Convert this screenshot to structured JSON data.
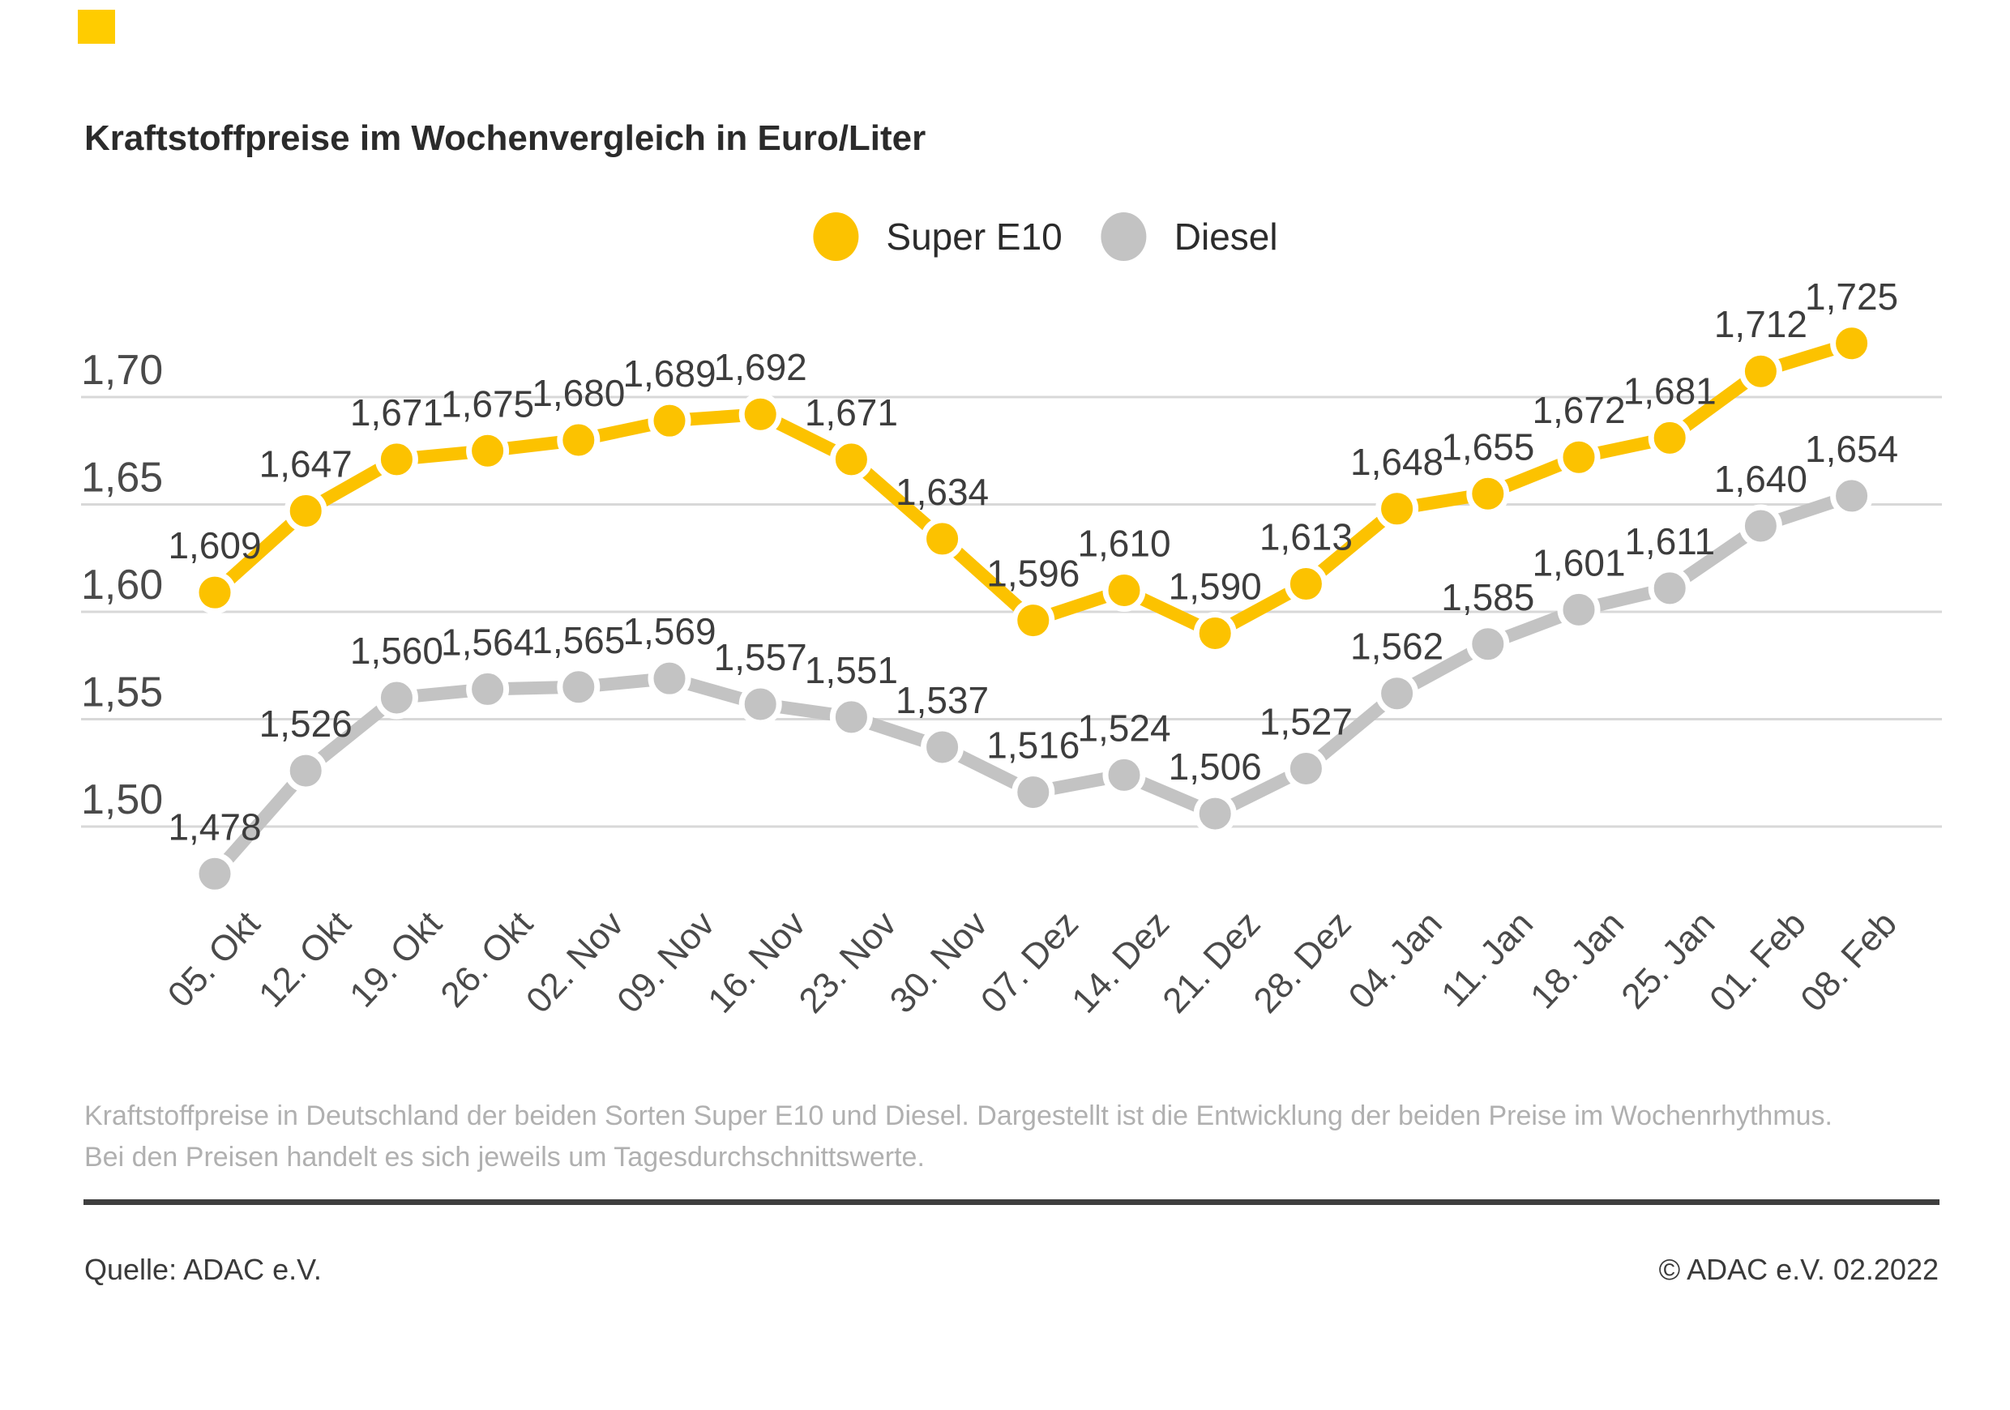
{
  "brand": {
    "mark_color": "#FFCC00"
  },
  "legend": [
    {
      "label": "Super E10",
      "color": "#FCC200"
    },
    {
      "label": "Diesel",
      "color": "#C3C3C3"
    }
  ],
  "chart_data": {
    "type": "line",
    "title": "Kraftstoffpreise im Wochenvergleich in Euro/Liter",
    "categories": [
      "05. Okt",
      "12. Okt",
      "19. Okt",
      "26. Okt",
      "02. Nov",
      "09. Nov",
      "16. Nov",
      "23. Nov",
      "30. Nov",
      "07. Dez",
      "14. Dez",
      "21. Dez",
      "28. Dez",
      "04. Jan",
      "11. Jan",
      "18. Jan",
      "25. Jan",
      "01. Feb",
      "08. Feb"
    ],
    "series": [
      {
        "name": "Super E10",
        "color": "#FCC200",
        "values": [
          1.609,
          1.647,
          1.671,
          1.675,
          1.68,
          1.689,
          1.692,
          1.671,
          1.634,
          1.596,
          1.61,
          1.59,
          1.613,
          1.648,
          1.655,
          1.672,
          1.681,
          1.712,
          1.725
        ]
      },
      {
        "name": "Diesel",
        "color": "#C3C3C3",
        "values": [
          1.478,
          1.526,
          1.56,
          1.564,
          1.565,
          1.569,
          1.557,
          1.551,
          1.537,
          1.516,
          1.524,
          1.506,
          1.527,
          1.562,
          1.585,
          1.601,
          1.611,
          1.64,
          1.654
        ]
      }
    ],
    "unit": "Euro/Liter",
    "yticks": [
      1.7,
      1.65,
      1.6,
      1.55,
      1.5
    ],
    "ylim": [
      1.45,
      1.75
    ],
    "grid": true,
    "legend_position": "top-center",
    "value_labels": true,
    "decimal_separator": ","
  },
  "description": "Kraftstoffpreise in Deutschland der beiden Sorten Super E10 und Diesel. Dargestellt ist die Entwicklung der beiden Preise im Wochenrhythmus. Bei den Preisen handelt es sich jeweils um Tagesdurchschnittswerte.",
  "footer": {
    "source": "Quelle: ADAC e.V.",
    "copyright": "© ADAC e.V. 02.2022"
  }
}
